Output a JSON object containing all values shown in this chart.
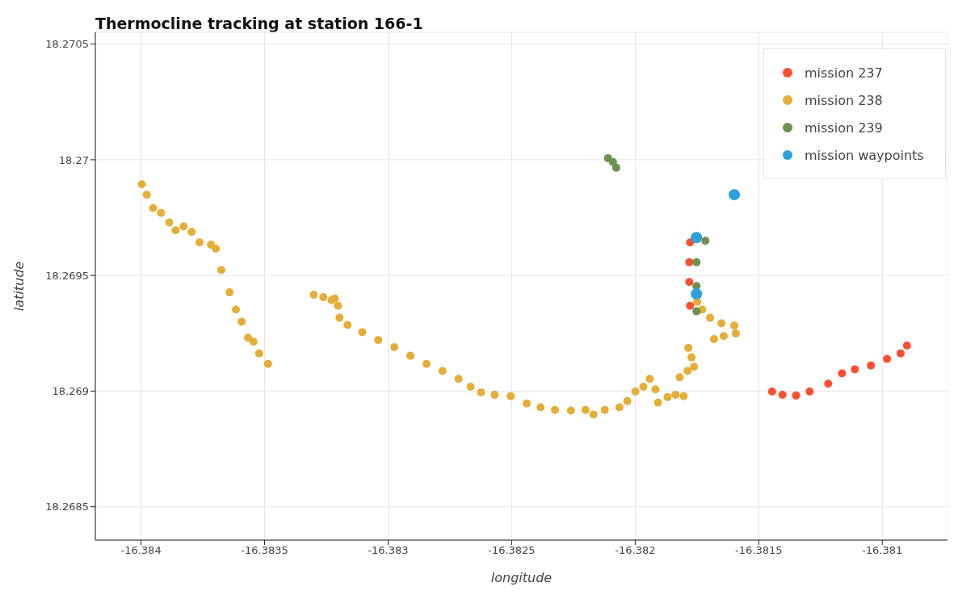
{
  "chart_data": {
    "type": "scatter",
    "title": "Thermocline tracking at station 166-1",
    "xlabel": "longitude",
    "ylabel": "latitude",
    "xlim": [
      -16.384185,
      -16.380736
    ],
    "ylim": [
      18.268356,
      18.270551
    ],
    "xticks": [
      -16.384,
      -16.3835,
      -16.383,
      -16.3825,
      -16.382,
      -16.3815,
      -16.381
    ],
    "yticks": [
      18.2685,
      18.269,
      18.2695,
      18.27,
      18.2705
    ],
    "grid": true,
    "legend": "top right",
    "marker": "circle",
    "series": [
      {
        "name": "mission 237",
        "color": "#fc4f30",
        "x": [
          -16.381778,
          -16.381781,
          -16.381781,
          -16.381778,
          -16.381446,
          -16.381404,
          -16.381349,
          -16.381294,
          -16.381219,
          -16.381163,
          -16.381111,
          -16.381046,
          -16.380981,
          -16.380926,
          -16.3809
        ],
        "values": [
          18.269643,
          18.269557,
          18.269472,
          18.269369,
          18.268998,
          18.268984,
          18.268981,
          18.268998,
          18.269032,
          18.269077,
          18.269094,
          18.269111,
          18.269139,
          18.269163,
          18.269197
        ]
      },
      {
        "name": "mission 238",
        "color": "#e5ae38",
        "x": [
          -16.383997,
          -16.383977,
          -16.383951,
          -16.383919,
          -16.383886,
          -16.38386,
          -16.383828,
          -16.383795,
          -16.383763,
          -16.383717,
          -16.383697,
          -16.383675,
          -16.383642,
          -16.383616,
          -16.383593,
          -16.383567,
          -16.383545,
          -16.383522,
          -16.383486,
          -16.383301,
          -16.383262,
          -16.383229,
          -16.383216,
          -16.383203,
          -16.383197,
          -16.383164,
          -16.383105,
          -16.38304,
          -16.382975,
          -16.38291,
          -16.382845,
          -16.38278,
          -16.382715,
          -16.382666,
          -16.382624,
          -16.382569,
          -16.382504,
          -16.382439,
          -16.382383,
          -16.382325,
          -16.38226,
          -16.382201,
          -16.382169,
          -16.382123,
          -16.382064,
          -16.382032,
          -16.381999,
          -16.381967,
          -16.381941,
          -16.381918,
          -16.381908,
          -16.381869,
          -16.381837,
          -16.381804,
          -16.38182,
          -16.381788,
          -16.381762,
          -16.381772,
          -16.381785,
          -16.381749,
          -16.381729,
          -16.381697,
          -16.381651,
          -16.381599,
          -16.381593,
          -16.381642,
          -16.381681
        ],
        "values": [
          18.269894,
          18.269849,
          18.269791,
          18.26977,
          18.269729,
          18.269695,
          18.269712,
          18.269688,
          18.269643,
          18.269633,
          18.269616,
          18.269523,
          18.269427,
          18.269352,
          18.2693,
          18.269231,
          18.269214,
          18.269163,
          18.269118,
          18.269417,
          18.269406,
          18.269393,
          18.2694,
          18.269369,
          18.269317,
          18.269286,
          18.269255,
          18.269221,
          18.26919,
          18.269153,
          18.269118,
          18.269087,
          18.269053,
          18.269019,
          18.268995,
          18.268984,
          18.268978,
          18.268947,
          18.26893,
          18.268919,
          18.268916,
          18.268919,
          18.268899,
          18.268919,
          18.26893,
          18.268957,
          18.268998,
          18.269019,
          18.269053,
          18.269008,
          18.26895,
          18.268974,
          18.268984,
          18.268978,
          18.26906,
          18.269087,
          18.269105,
          18.269146,
          18.269187,
          18.269386,
          18.269352,
          18.269317,
          18.269293,
          18.269283,
          18.269249,
          18.269238,
          18.269225
        ]
      },
      {
        "name": "mission 239",
        "color": "#6d904f",
        "x": [
          -16.38211,
          -16.38209,
          -16.382077,
          -16.381752,
          -16.381752,
          -16.381752,
          -16.381716
        ],
        "values": [
          18.270007,
          18.26999,
          18.269966,
          18.269557,
          18.269454,
          18.269345,
          18.26965
        ]
      },
      {
        "name": "mission waypoints",
        "color": "#30a2da",
        "x": [
          -16.381599,
          -16.381752,
          -16.381752
        ],
        "values": [
          18.269849,
          18.269664,
          18.26942
        ]
      }
    ]
  }
}
